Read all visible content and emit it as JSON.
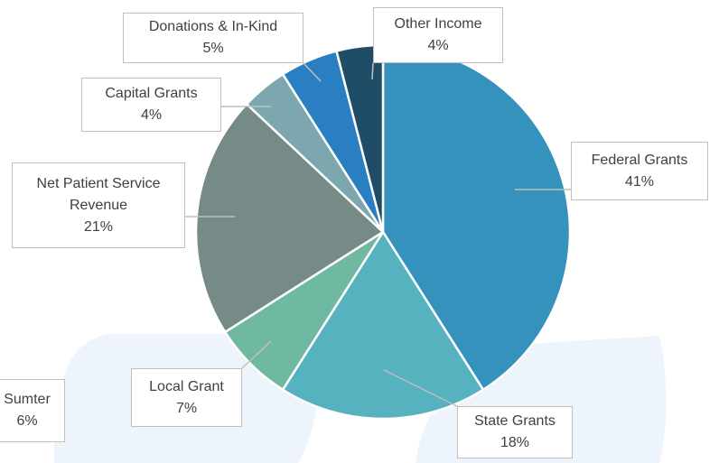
{
  "chart_data": {
    "type": "pie",
    "categories": [
      "Federal Grants",
      "State Grants",
      "Local Grant",
      "Net Patient Service Revenue",
      "Capital Grants",
      "Donations & In-Kind",
      "Other Income"
    ],
    "values": [
      41,
      18,
      7,
      21,
      4,
      5,
      4
    ],
    "value_labels": [
      "41%",
      "18%",
      "7%",
      "21%",
      "4%",
      "5%",
      "4%"
    ],
    "colors": [
      "#3592bd",
      "#55b2be",
      "#6fb8a2",
      "#768b88",
      "#7da7ae",
      "#2a7fc3",
      "#1f4d68"
    ]
  },
  "clipped_label": {
    "name": "Sumter",
    "value_label": "6%"
  }
}
